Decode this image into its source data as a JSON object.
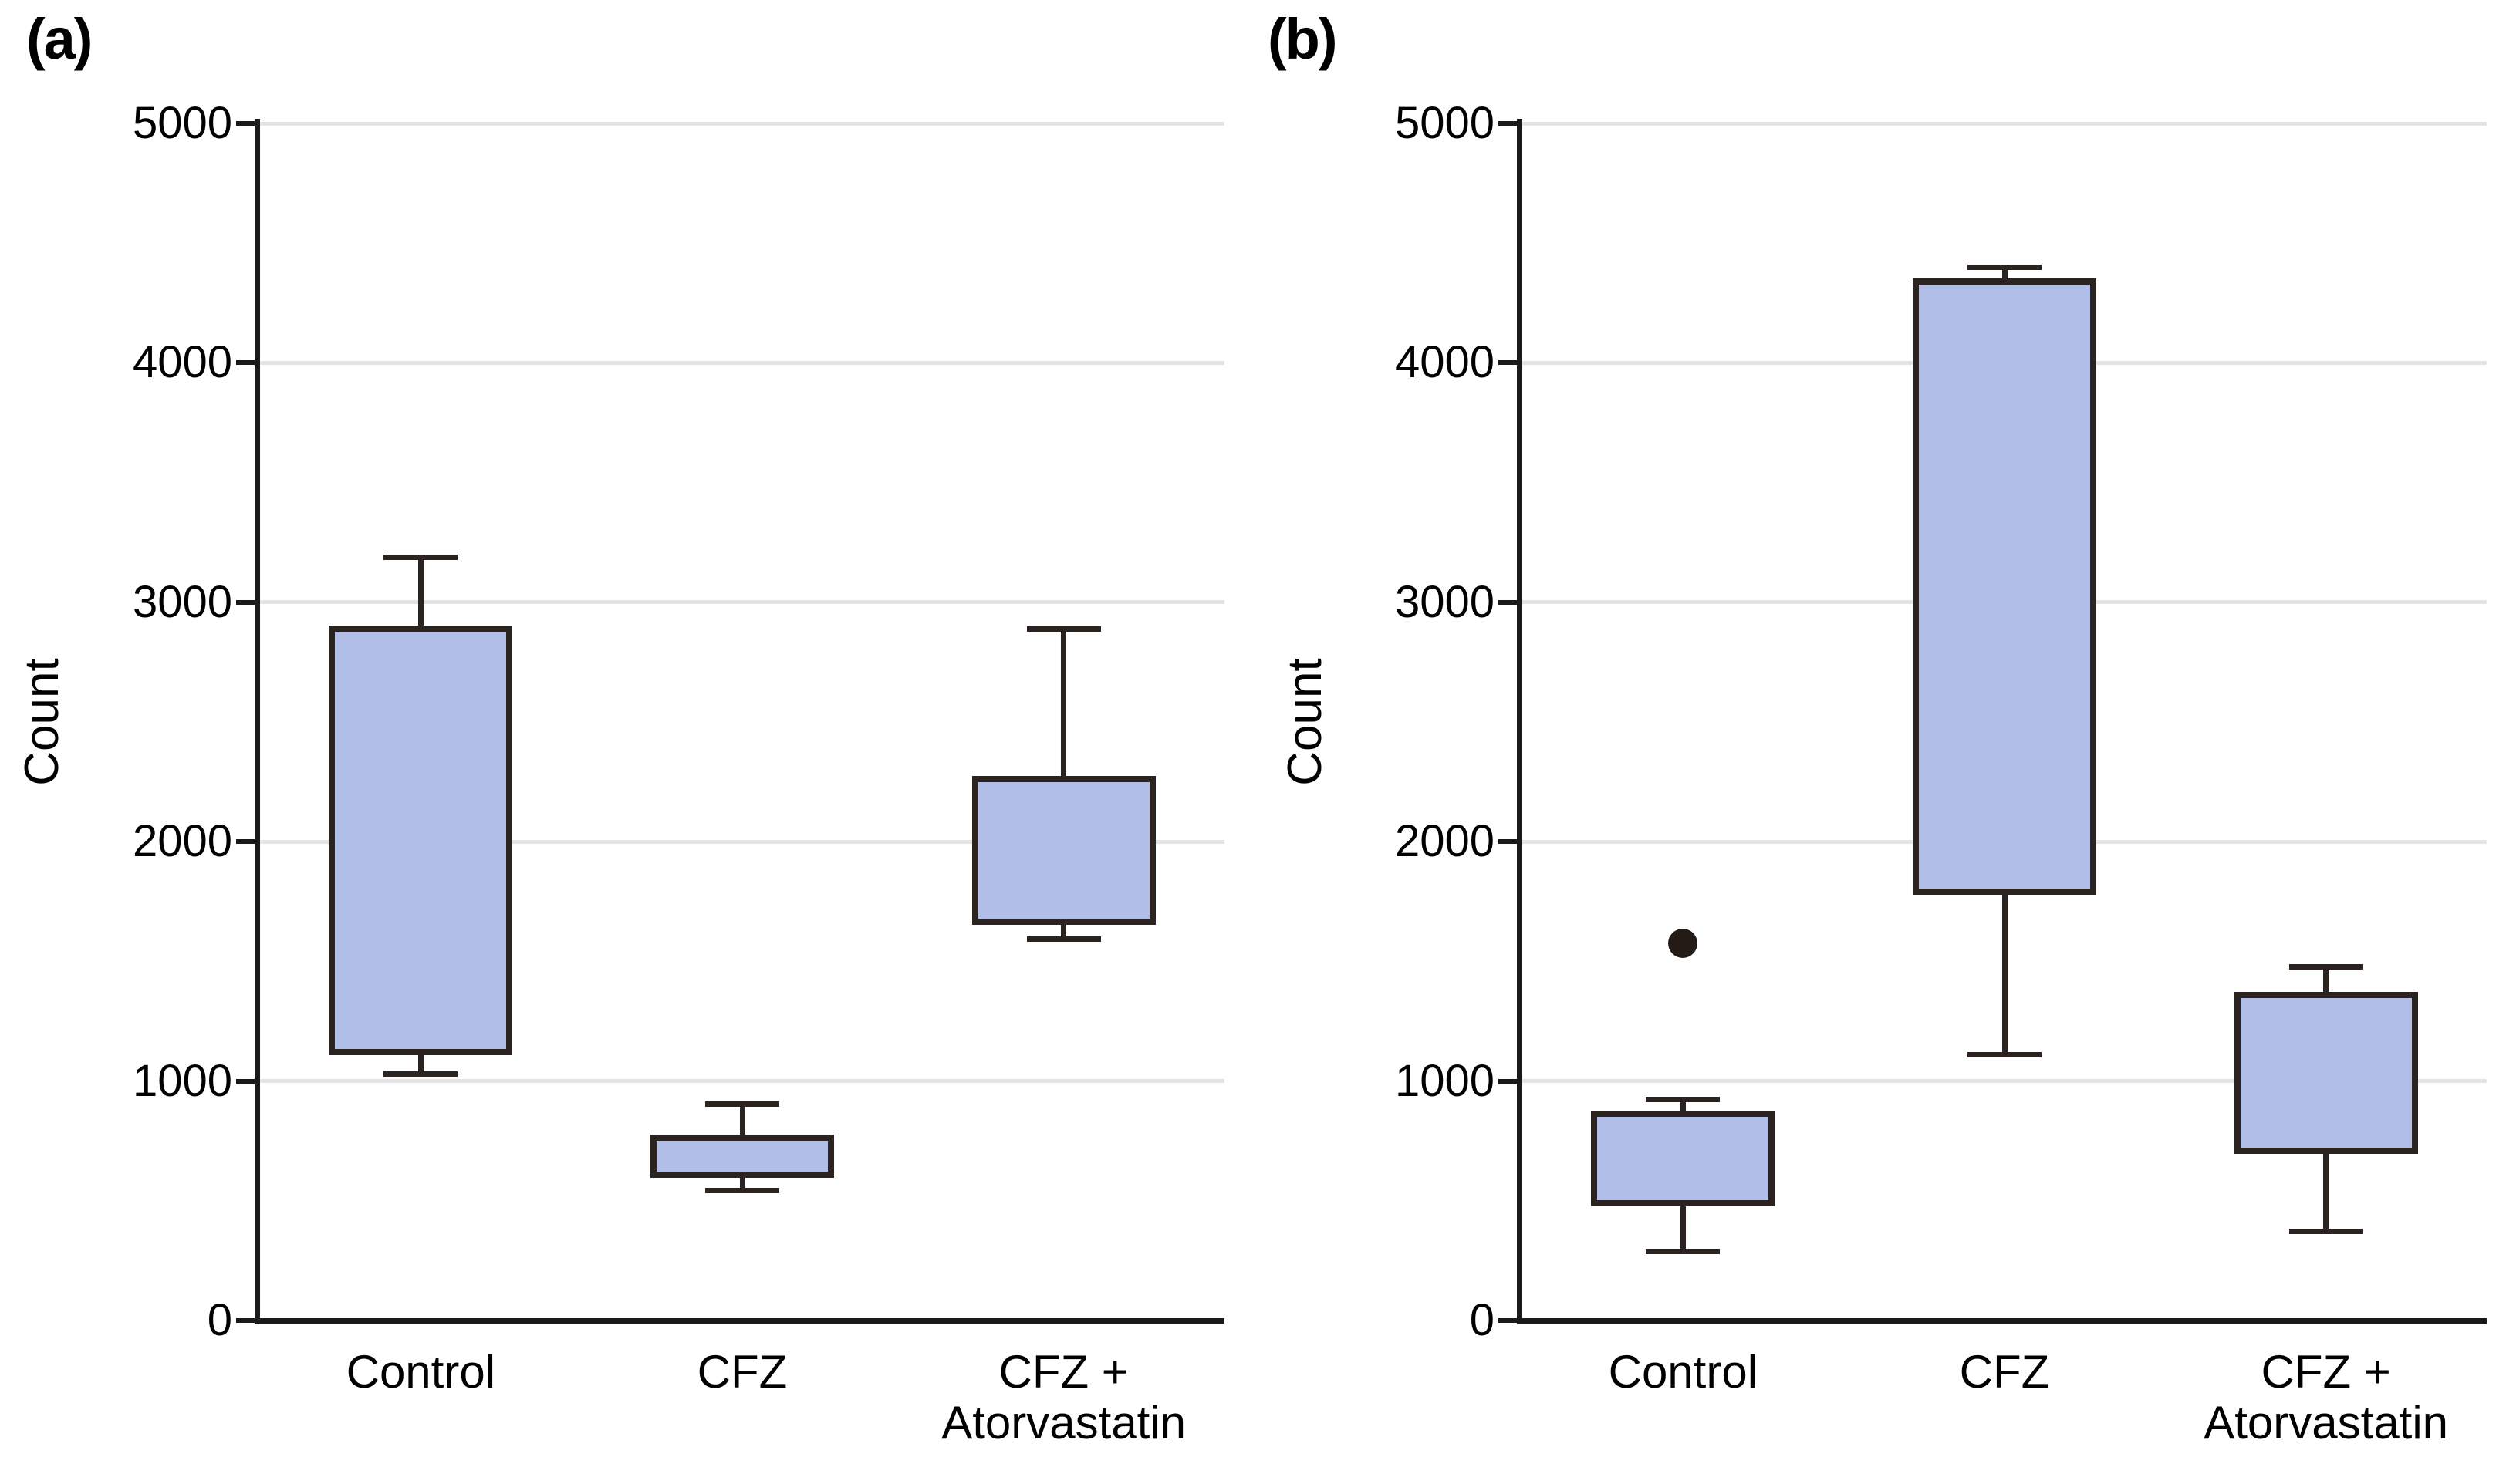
{
  "chart_data": {
    "type": "box",
    "title": "",
    "grid": true,
    "legend": false,
    "panels": [
      {
        "label": "(a)",
        "ylabel": "Count",
        "xlabel": "",
        "ylim": [
          0,
          5000
        ],
        "yticks": [
          "0",
          "1000",
          "2000",
          "3000",
          "4000",
          "5000"
        ],
        "ytick_values": [
          0,
          1000,
          2000,
          3000,
          4000,
          5000
        ],
        "categories": [
          "Control",
          "CFZ",
          "CFZ + Atorvastatin"
        ],
        "category_label_lines": [
          [
            "Control"
          ],
          [
            "CFZ"
          ],
          [
            "CFZ +",
            "Atorvastatin"
          ]
        ],
        "series": [
          {
            "name": "Control",
            "whisker_low": 1030,
            "q1": 1120,
            "q3": 2890,
            "whisker_high": 3190,
            "outliers": []
          },
          {
            "name": "CFZ",
            "whisker_low": 545,
            "q1": 610,
            "q3": 765,
            "whisker_high": 905,
            "outliers": []
          },
          {
            "name": "CFZ + Atorvastatin",
            "whisker_low": 1595,
            "q1": 1665,
            "q3": 2260,
            "whisker_high": 2890,
            "outliers": []
          }
        ]
      },
      {
        "label": "(b)",
        "ylabel": "Count",
        "xlabel": "",
        "ylim": [
          0,
          5000
        ],
        "yticks": [
          "0",
          "1000",
          "2000",
          "3000",
          "4000",
          "5000"
        ],
        "ytick_values": [
          0,
          1000,
          2000,
          3000,
          4000,
          5000
        ],
        "categories": [
          "Control",
          "CFZ",
          "CFZ + Atorvastatin"
        ],
        "category_label_lines": [
          [
            "Control"
          ],
          [
            "CFZ"
          ],
          [
            "CFZ +",
            "Atorvastatin"
          ]
        ],
        "series": [
          {
            "name": "Control",
            "whisker_low": 290,
            "q1": 490,
            "q3": 865,
            "whisker_high": 925,
            "outliers": [
              1575
            ]
          },
          {
            "name": "CFZ",
            "whisker_low": 1110,
            "q1": 1790,
            "q3": 4340,
            "whisker_high": 4400,
            "outliers": []
          },
          {
            "name": "CFZ + Atorvastatin",
            "whisker_low": 375,
            "q1": 710,
            "q3": 1360,
            "whisker_high": 1480,
            "outliers": []
          }
        ]
      }
    ],
    "colors": {
      "box_fill": "#b1bfe8",
      "box_border": "#2b2320",
      "gridline": "#e4e4e4",
      "axis": "#1a1a1a",
      "text": "#000000",
      "outlier_dot": "#241b17"
    }
  }
}
